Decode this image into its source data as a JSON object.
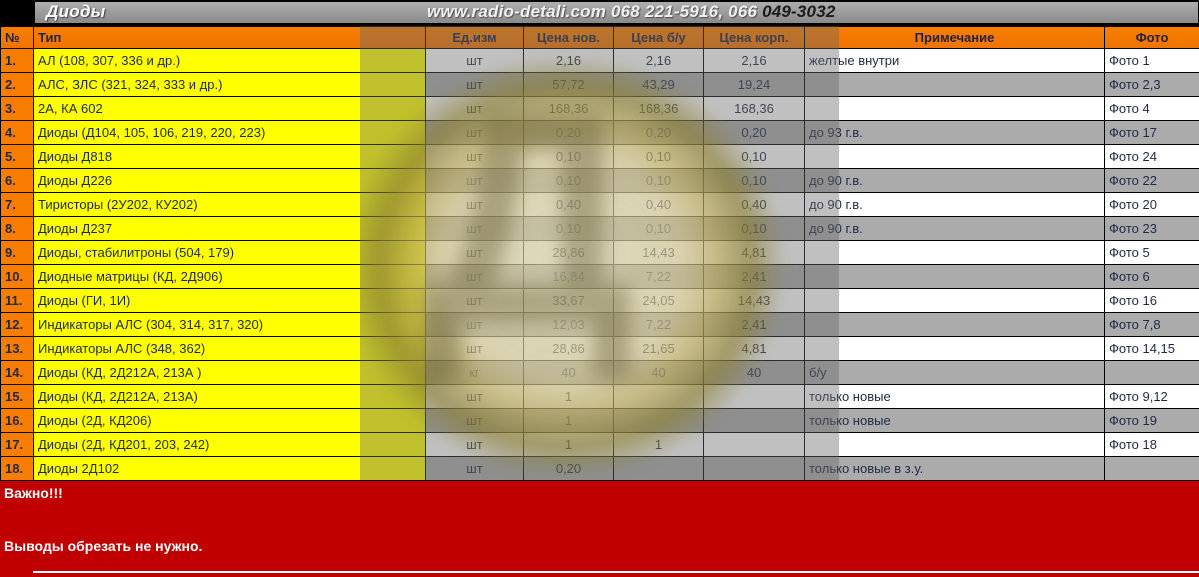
{
  "titlebar": {
    "title": "Диоды",
    "website_light": "www.radio-detali.com 068 221-5916, 066 ",
    "website_dark": "049-3032"
  },
  "table": {
    "headers": {
      "num": "№",
      "type": "Тип",
      "unit": "Ед.изм",
      "price_new": "Цена нов.",
      "price_used": "Цена б/у",
      "price_case": "Цена корп.",
      "note": "Примечание",
      "photo": "Фото"
    },
    "rows": [
      {
        "num": "1.",
        "type": "АЛ (108, 307, 336 и др.)",
        "unit": "шт",
        "price_new": "2,16",
        "price_used": "2,16",
        "price_case": "2,16",
        "note": "желтые внутри",
        "photo": "Фото 1"
      },
      {
        "num": "2.",
        "type": "АЛС, ЗЛС (321, 324, 333 и др.)",
        "unit": "шт",
        "price_new": "57,72",
        "price_used": "43,29",
        "price_case": "19,24",
        "note": "",
        "photo": "Фото 2,3"
      },
      {
        "num": "3.",
        "type": "2А, КА 602",
        "unit": "шт",
        "price_new": "168,36",
        "price_used": "168,36",
        "price_case": "168,36",
        "note": "",
        "photo": "Фото 4"
      },
      {
        "num": "4.",
        "type": "Диоды (Д104, 105, 106, 219, 220, 223)",
        "unit": "шт",
        "price_new": "0,20",
        "price_used": "0,20",
        "price_case": "0,20",
        "note": "до 93 г.в.",
        "photo": "Фото 17"
      },
      {
        "num": "5.",
        "type": "Диоды Д818",
        "unit": "шт",
        "price_new": "0,10",
        "price_used": "0,10",
        "price_case": "0,10",
        "note": "",
        "photo": "Фото 24"
      },
      {
        "num": "6.",
        "type": "Диоды Д226",
        "unit": "шт",
        "price_new": "0,10",
        "price_used": "0,10",
        "price_case": "0,10",
        "note": "до 90 г.в.",
        "photo": "Фото 22"
      },
      {
        "num": "7.",
        "type": "Тиристоры (2У202, КУ202)",
        "unit": "шт",
        "price_new": "0,40",
        "price_used": "0,40",
        "price_case": "0,40",
        "note": "до 90 г.в.",
        "photo": "Фото 20"
      },
      {
        "num": "8.",
        "type": "Диоды Д237",
        "unit": "шт",
        "price_new": "0,10",
        "price_used": "0,10",
        "price_case": "0,10",
        "note": "до 90 г.в.",
        "photo": "Фото 23"
      },
      {
        "num": "9.",
        "type": "Диоды, стабилитроны (504, 179)",
        "unit": "шт",
        "price_new": "28,86",
        "price_used": "14,43",
        "price_case": "4,81",
        "note": "",
        "photo": "Фото 5"
      },
      {
        "num": "10.",
        "type": "Диодные матрицы (КД, 2Д906)",
        "unit": "шт",
        "price_new": "16,84",
        "price_used": "7,22",
        "price_case": "2,41",
        "note": "",
        "photo": "Фото 6"
      },
      {
        "num": "11.",
        "type": "Диоды (ГИ, 1И)",
        "unit": "шт",
        "price_new": "33,67",
        "price_used": "24,05",
        "price_case": "14,43",
        "note": "",
        "photo": "Фото 16"
      },
      {
        "num": "12.",
        "type": "Индикаторы АЛС (304, 314, 317, 320)",
        "unit": "шт",
        "price_new": "12,03",
        "price_used": "7,22",
        "price_case": "2,41",
        "note": "",
        "photo": "Фото 7,8"
      },
      {
        "num": "13.",
        "type": "Индикаторы АЛС (348, 362)",
        "unit": "шт",
        "price_new": "28,86",
        "price_used": "21,65",
        "price_case": "4,81",
        "note": "",
        "photo": "Фото 14,15"
      },
      {
        "num": "14.",
        "type": "Диоды (КД, 2Д212А, 213А )",
        "unit": "кг",
        "price_new": "40",
        "price_used": "40",
        "price_case": "40",
        "note": "б/у",
        "photo": ""
      },
      {
        "num": "15.",
        "type": "Диоды (КД, 2Д212А, 213А)",
        "unit": "шт",
        "price_new": "1",
        "price_used": "",
        "price_case": "",
        "note": "только новые",
        "photo": "Фото 9,12"
      },
      {
        "num": "16.",
        "type": "Диоды (2Д, КД206)",
        "unit": "шт",
        "price_new": "1",
        "price_used": "",
        "price_case": "",
        "note": "только новые",
        "photo": "Фото 19"
      },
      {
        "num": "17.",
        "type": "Диоды (2Д, КД201, 203, 242)",
        "unit": "шт",
        "price_new": "1",
        "price_used": "1",
        "price_case": "",
        "note": "",
        "photo": "Фото 18"
      },
      {
        "num": "18.",
        "type": "Диоды 2Д102",
        "unit": "шт",
        "price_new": "0,20",
        "price_used": "",
        "price_case": "",
        "note": "только новые в з.у.",
        "photo": ""
      }
    ]
  },
  "footer": {
    "warning": "Важно!!!",
    "note": "Выводы обрезать не нужно."
  },
  "watermark": {
    "glyph": "Д"
  },
  "colors": {
    "orange": "#f87d00",
    "yellow": "#ffff00",
    "rowgray": "#ababab",
    "red": "#c00000"
  }
}
